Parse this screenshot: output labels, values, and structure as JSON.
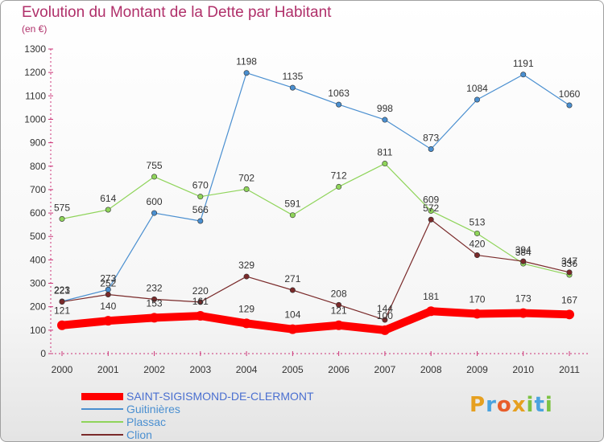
{
  "header": {
    "title": "Evolution du Montant de la Dette par Habitant",
    "subtitle": "(en €)"
  },
  "logo": {
    "letters": [
      "P",
      "r",
      "o",
      "x",
      "i",
      "t",
      "i"
    ],
    "colors": [
      "#e6a020",
      "#4aa3df",
      "#e85d2a",
      "#e6a020",
      "#7cc242",
      "#4aa3df",
      "#7cc242"
    ]
  },
  "chart_data": {
    "type": "line",
    "title": "Evolution du Montant de la Dette par Habitant",
    "xlabel": "",
    "ylabel": "(en €)",
    "ylim": [
      0,
      1300
    ],
    "yticks": [
      0,
      100,
      200,
      300,
      400,
      500,
      600,
      700,
      800,
      900,
      1000,
      1100,
      1200,
      1300
    ],
    "grid": false,
    "legend_position": "bottom-left",
    "categories": [
      "2000",
      "2001",
      "2002",
      "2003",
      "2004",
      "2005",
      "2006",
      "2007",
      "2008",
      "2009",
      "2010",
      "2011"
    ],
    "series": [
      {
        "name": "SAINT-SIGISMOND-DE-CLERMONT",
        "color": "#ff0000",
        "values": [
          121,
          140,
          153,
          161,
          129,
          104,
          121,
          100,
          181,
          170,
          173,
          167
        ]
      },
      {
        "name": "Guitinières",
        "color": "#4a8fd0",
        "values": [
          223,
          273,
          600,
          566,
          1198,
          1135,
          1063,
          998,
          873,
          1084,
          1191,
          1060
        ]
      },
      {
        "name": "Plassac",
        "color": "#8fd45a",
        "values": [
          575,
          614,
          755,
          670,
          702,
          591,
          712,
          811,
          609,
          513,
          384,
          336
        ]
      },
      {
        "name": "Clion",
        "color": "#7a2a2a",
        "values": [
          221,
          252,
          232,
          220,
          329,
          271,
          208,
          144,
          572,
          420,
          394,
          347
        ]
      }
    ]
  }
}
